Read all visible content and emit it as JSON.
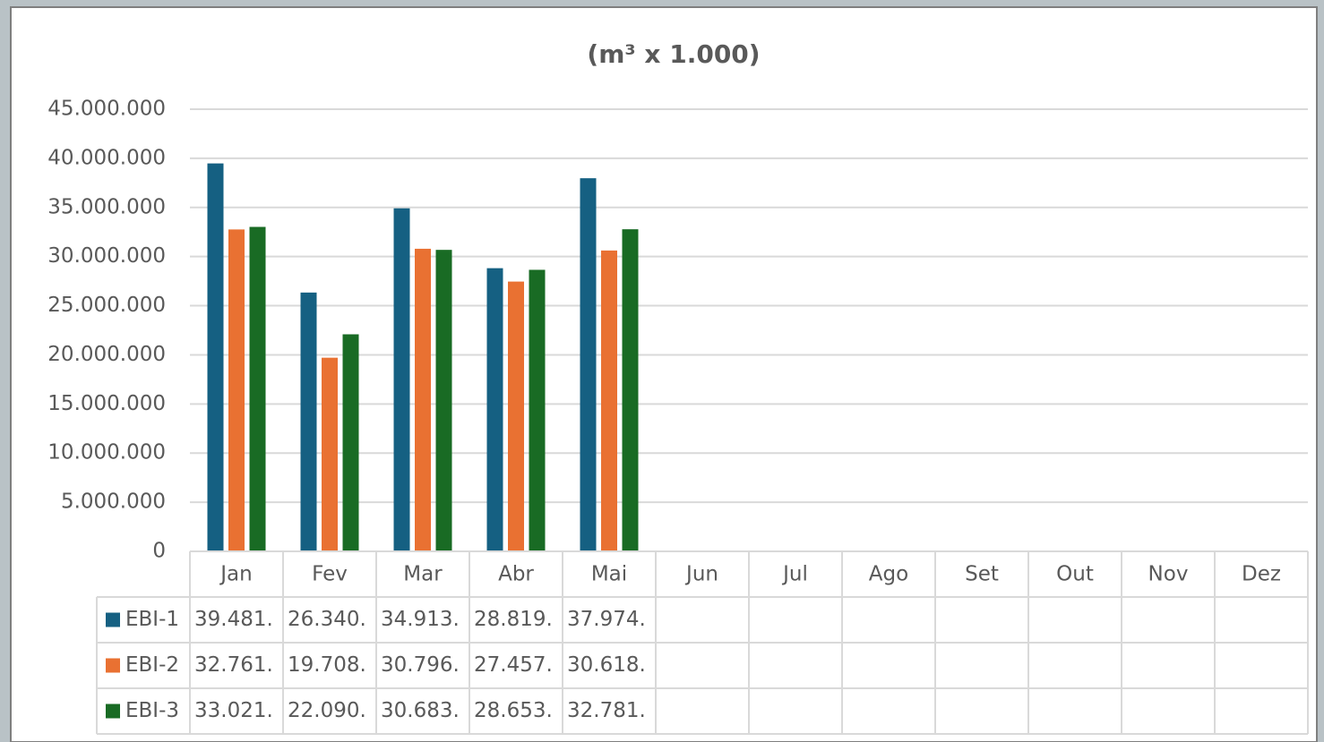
{
  "chart_data": {
    "type": "bar",
    "title": "(m³ x 1.000)",
    "categories": [
      "Jan",
      "Fev",
      "Mar",
      "Abr",
      "Mai",
      "Jun",
      "Jul",
      "Ago",
      "Set",
      "Out",
      "Nov",
      "Dez"
    ],
    "series": [
      {
        "name": "EBI-1",
        "color": "#156082",
        "values": [
          39481000,
          26340000,
          34913000,
          28819000,
          37974000,
          null,
          null,
          null,
          null,
          null,
          null,
          null
        ],
        "value_labels": [
          "39.481.",
          "26.340.",
          "34.913.",
          "28.819.",
          "37.974.",
          null,
          null,
          null,
          null,
          null,
          null,
          null
        ]
      },
      {
        "name": "EBI-2",
        "color": "#e97132",
        "values": [
          32761000,
          19708000,
          30796000,
          27457000,
          30618000,
          null,
          null,
          null,
          null,
          null,
          null,
          null
        ],
        "value_labels": [
          "32.761.",
          "19.708.",
          "30.796.",
          "27.457.",
          "30.618.",
          null,
          null,
          null,
          null,
          null,
          null,
          null
        ]
      },
      {
        "name": "EBI-3",
        "color": "#196b24",
        "values": [
          33021000,
          22090000,
          30683000,
          28653000,
          32781000,
          null,
          null,
          null,
          null,
          null,
          null,
          null
        ],
        "value_labels": [
          "33.021.",
          "22.090.",
          "30.683.",
          "28.653.",
          "32.781.",
          null,
          null,
          null,
          null,
          null,
          null,
          null
        ]
      }
    ],
    "ylim": [
      0,
      45000000
    ],
    "yticks": [
      0,
      {
        "value": 5000000,
        "label": "5.000.000"
      },
      {
        "value": 10000000,
        "label": "10.000.000"
      },
      {
        "value": 15000000,
        "label": "15.000.000"
      },
      {
        "value": 20000000,
        "label": "20.000.000"
      },
      {
        "value": 25000000,
        "label": "25.000.000"
      },
      {
        "value": 30000000,
        "label": "30.000.000"
      },
      {
        "value": 35000000,
        "label": "35.000.000"
      },
      {
        "value": 40000000,
        "label": "40.000.000"
      },
      {
        "value": 45000000,
        "label": "45.000.000"
      }
    ],
    "grid": true,
    "data_table": true
  }
}
